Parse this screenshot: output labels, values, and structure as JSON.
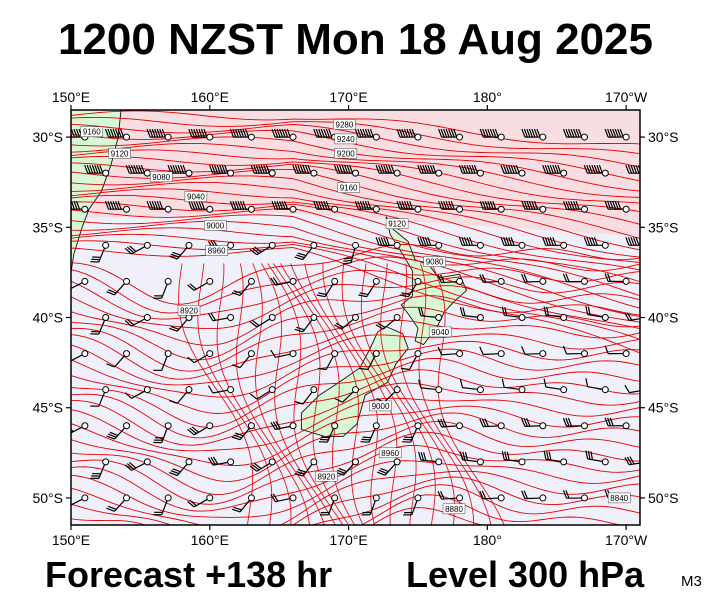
{
  "header": {
    "title": "1200 NZST Mon 18 Aug 2025"
  },
  "footer": {
    "forecast": "Forecast +138 hr",
    "level": "Level 300 hPa",
    "model": "M3"
  },
  "axes": {
    "lon_labels": [
      "150°E",
      "160°E",
      "170°E",
      "180°",
      "170°W"
    ],
    "lat_labels": [
      "30°S",
      "35°S",
      "40°S",
      "45°S",
      "50°S"
    ],
    "lon_values": [
      150,
      160,
      170,
      180,
      190
    ],
    "lat_values": [
      -30,
      -35,
      -40,
      -45,
      -50
    ],
    "lon_range": [
      150,
      191
    ],
    "lat_range": [
      -28.5,
      -51.5
    ]
  },
  "contours": {
    "units": "gpm",
    "labels": [
      {
        "text": "9160",
        "lon": 151.5,
        "lat": -29.7
      },
      {
        "text": "9120",
        "lon": 153.5,
        "lat": -30.9
      },
      {
        "text": "9280",
        "lon": 169.7,
        "lat": -29.3
      },
      {
        "text": "9240",
        "lon": 169.8,
        "lat": -30.1
      },
      {
        "text": "9200",
        "lon": 169.8,
        "lat": -30.9
      },
      {
        "text": "9080",
        "lon": 156.5,
        "lat": -32.2
      },
      {
        "text": "9040",
        "lon": 159.0,
        "lat": -33.3
      },
      {
        "text": "9160",
        "lon": 170.0,
        "lat": -32.8
      },
      {
        "text": "9000",
        "lon": 160.4,
        "lat": -34.9
      },
      {
        "text": "9120",
        "lon": 173.5,
        "lat": -34.8
      },
      {
        "text": "8960",
        "lon": 160.5,
        "lat": -36.3
      },
      {
        "text": "9080",
        "lon": 176.2,
        "lat": -36.9
      },
      {
        "text": "8920",
        "lon": 158.5,
        "lat": -39.6
      },
      {
        "text": "9040",
        "lon": 176.6,
        "lat": -40.8
      },
      {
        "text": "9000",
        "lon": 172.3,
        "lat": -44.9
      },
      {
        "text": "8960",
        "lon": 173.0,
        "lat": -47.5
      },
      {
        "text": "8920",
        "lon": 168.4,
        "lat": -48.8
      },
      {
        "text": "8880",
        "lon": 177.6,
        "lat": -50.6
      },
      {
        "text": "8840",
        "lon": 189.5,
        "lat": -50.0
      }
    ]
  },
  "colors": {
    "contour": "#e30000",
    "high_fill": "#ffd0d0",
    "low_fill": "#f0f0fb",
    "land": "#d9f7d4",
    "grid": "#000000"
  }
}
